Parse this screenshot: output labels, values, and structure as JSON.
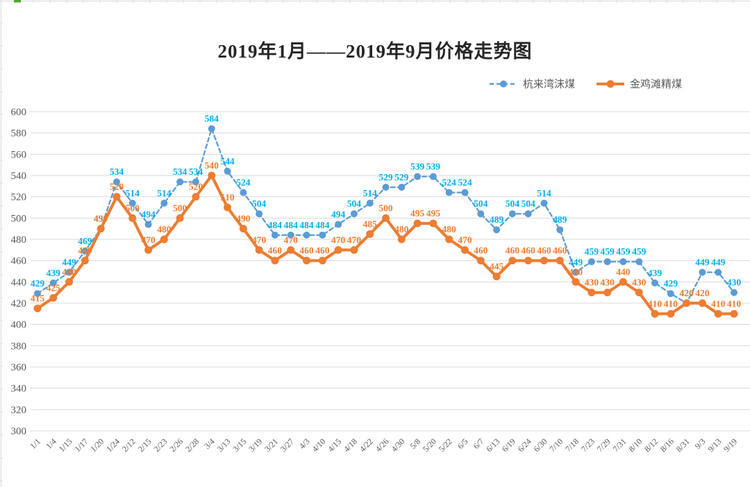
{
  "page": {
    "background": "#FFFFFF",
    "edge_tick_color": "#D9D9D9",
    "selection_handle_color": "#4EA72E"
  },
  "chart_data": {
    "type": "line",
    "title": "2019年1月——2019年9月价格走势图",
    "categories": [
      "1/1",
      "1/4",
      "1/15",
      "1/17",
      "1/20",
      "1/24",
      "2/12",
      "2/15",
      "2/23",
      "2/26",
      "2/28",
      "3/4",
      "3/13",
      "3/15",
      "3/19",
      "3/21",
      "3/27",
      "4/3",
      "4/10",
      "4/15",
      "4/18",
      "4/22",
      "4/26",
      "4/30",
      "5/8",
      "5/20",
      "5/22",
      "6/5",
      "6/7",
      "6/13",
      "6/19",
      "6/24",
      "6/30",
      "7/10",
      "7/18",
      "7/23",
      "7/29",
      "7/31",
      "8/10",
      "8/12",
      "8/16",
      "8/31",
      "9/3",
      "9/13",
      "9/19"
    ],
    "series": [
      {
        "name": "杭来湾沫煤",
        "line_style": "dashed",
        "line_color": "#5B9BD5",
        "label_color": "#00B0F0",
        "values": [
          429,
          439,
          449,
          469,
          490,
          534,
          514,
          494,
          514,
          534,
          534,
          584,
          544,
          524,
          504,
          484,
          484,
          484,
          484,
          494,
          504,
          514,
          529,
          529,
          539,
          539,
          524,
          524,
          504,
          489,
          504,
          504,
          514,
          489,
          449,
          459,
          459,
          459,
          459,
          439,
          429,
          420,
          449,
          449,
          430
        ]
      },
      {
        "name": "金鸡滩精煤",
        "line_style": "solid",
        "line_color": "#ED7D31",
        "label_color": "#ED7D31",
        "values": [
          415,
          425,
          440,
          460,
          490,
          520,
          500,
          470,
          480,
          500,
          520,
          540,
          510,
          490,
          470,
          460,
          470,
          460,
          460,
          470,
          470,
          485,
          500,
          480,
          495,
          495,
          480,
          470,
          460,
          445,
          460,
          460,
          460,
          460,
          440,
          430,
          430,
          440,
          430,
          410,
          410,
          420,
          420,
          410,
          410
        ]
      }
    ],
    "xlabel": "",
    "ylabel": "",
    "ylim": [
      300,
      600
    ],
    "ytick_step": 20,
    "yticks": [
      600,
      580,
      560,
      540,
      520,
      500,
      480,
      460,
      440,
      420,
      400,
      380,
      360,
      340,
      320,
      300
    ],
    "grid": true,
    "grid_color": "#D9D9D9",
    "axis_color": "#595959",
    "legend_position": "top-right"
  }
}
